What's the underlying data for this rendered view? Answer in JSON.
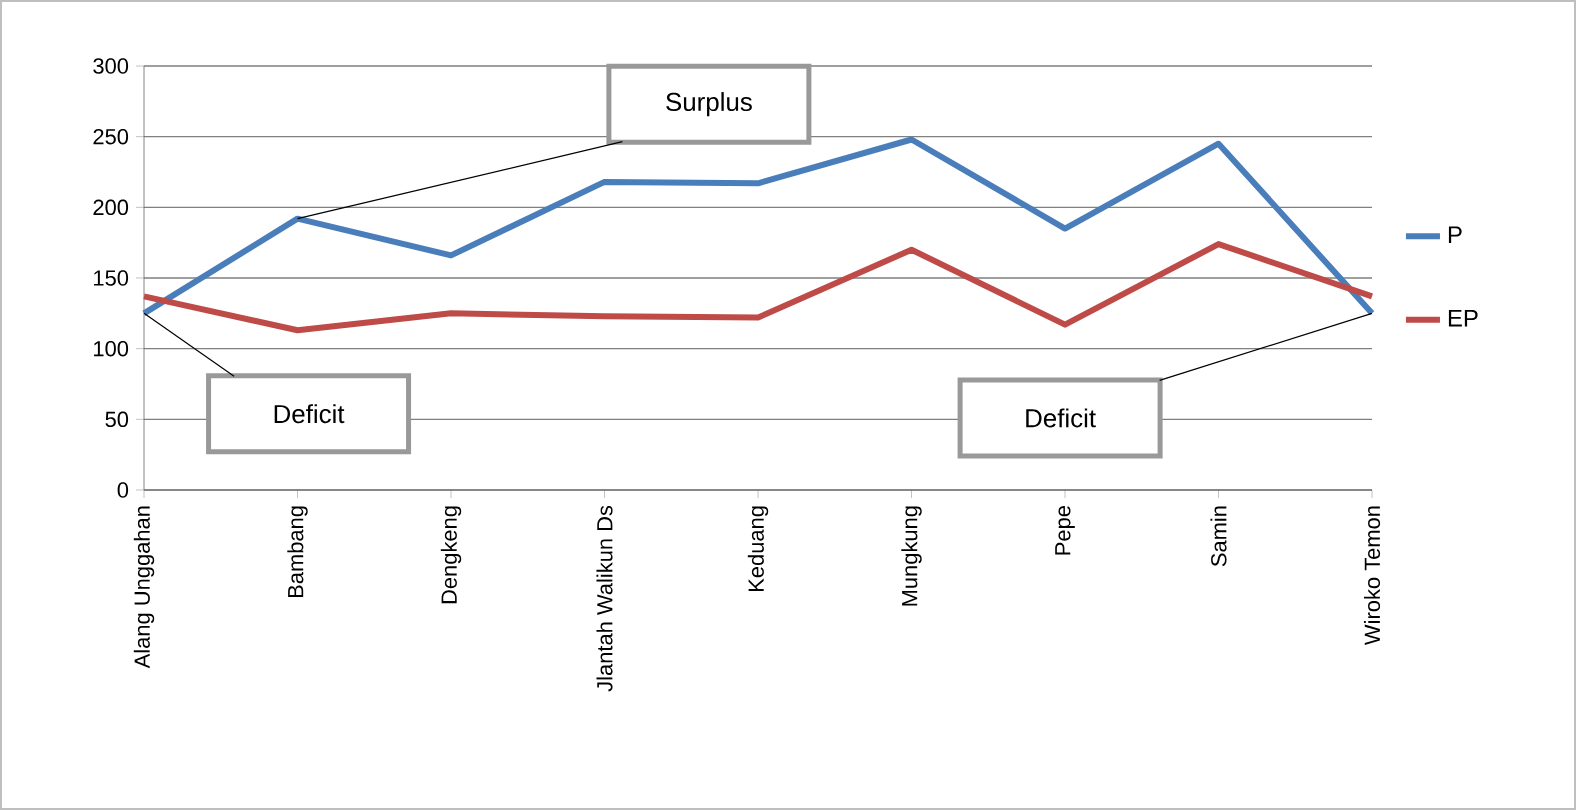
{
  "chart_data": {
    "type": "line",
    "categories": [
      "Alang Unggahan",
      "Bambang",
      "Dengkeng",
      "Jlantah Walikun Ds",
      "Keduang",
      "Mungkung",
      "Pepe",
      "Samin",
      "Wiroko Temon"
    ],
    "series": [
      {
        "name": "P",
        "color": "#4a7ebb",
        "values": [
          125,
          192,
          166,
          218,
          217,
          248,
          185,
          245,
          125
        ]
      },
      {
        "name": "EP",
        "color": "#be4b48",
        "values": [
          137,
          113,
          125,
          123,
          122,
          170,
          117,
          174,
          137
        ]
      }
    ],
    "ylim": [
      0,
      300
    ],
    "yticks": [
      0,
      50,
      100,
      150,
      200,
      250,
      300
    ],
    "grid": "y",
    "legend": "right",
    "marker": "none",
    "line_style": "solid",
    "annotations": [
      "Surplus",
      "Deficit",
      "Deficit"
    ]
  }
}
